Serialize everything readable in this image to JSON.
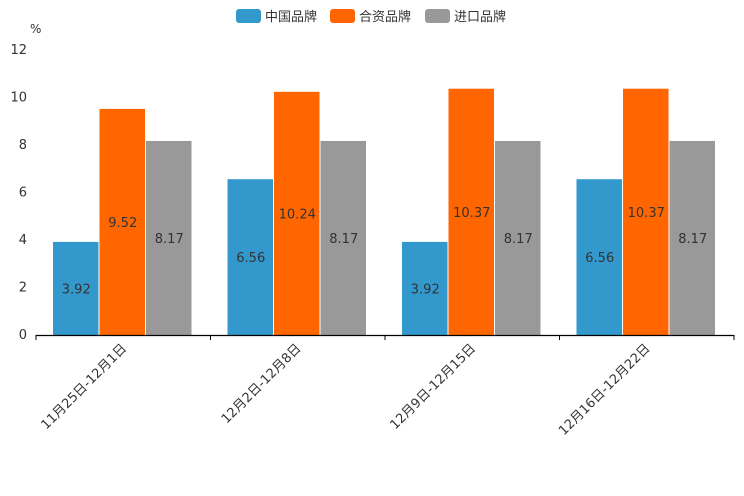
{
  "chart_data": {
    "type": "bar",
    "ylabel": "%",
    "ylim": [
      0,
      12
    ],
    "yticks": [
      0,
      2,
      4,
      6,
      8,
      10,
      12
    ],
    "grid": false,
    "legend_position": "top-center",
    "categories": [
      "11月25日-12月1日",
      "12月2日-12月8日",
      "12月9日-12月15日",
      "12月16日-12月22日"
    ],
    "series": [
      {
        "name": "中国品牌",
        "color": "#3399cc",
        "values": [
          3.92,
          6.56,
          3.92,
          6.56
        ]
      },
      {
        "name": "合资品牌",
        "color": "#ff6600",
        "values": [
          9.52,
          10.24,
          10.37,
          10.37
        ]
      },
      {
        "name": "进口品牌",
        "color": "#999999",
        "values": [
          8.17,
          8.17,
          8.17,
          8.17
        ]
      }
    ]
  }
}
